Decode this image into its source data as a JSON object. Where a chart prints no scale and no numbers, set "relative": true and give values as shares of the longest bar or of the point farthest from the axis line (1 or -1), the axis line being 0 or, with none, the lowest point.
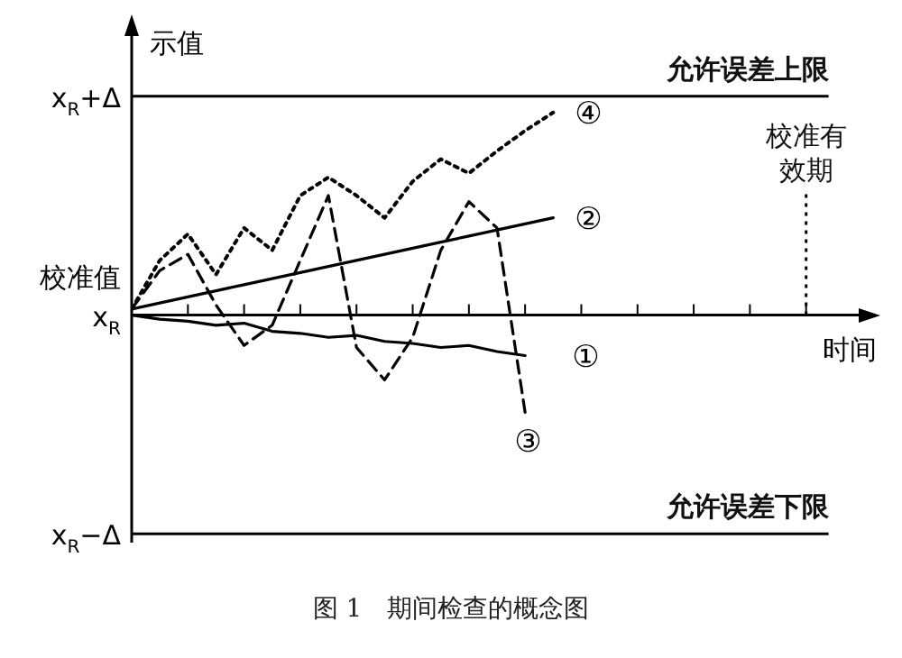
{
  "chart_data": {
    "type": "line",
    "ylabel": "示值",
    "xlabel": "时间",
    "relative": true,
    "categories": [
      null,
      null,
      null,
      null,
      null,
      null,
      null,
      null,
      null,
      null,
      null,
      null,
      null,
      null,
      null,
      null,
      null,
      null,
      null,
      null,
      null,
      null,
      null,
      null,
      null,
      null,
      null
    ],
    "legend": "right",
    "marker": "none",
    "series": [
      {
        "name": "①",
        "color": "#000000",
        "line_style": "solid",
        "values": [
          0,
          -0.02,
          -0.03,
          -0.05,
          -0.04,
          -0.08,
          -0.09,
          -0.11,
          -0.1,
          -0.13,
          -0.14,
          -0.16,
          -0.15,
          -0.18,
          -0.2,
          null,
          null,
          null,
          null,
          null,
          null,
          null,
          null,
          null,
          null,
          null,
          null
        ]
      },
      {
        "name": "②",
        "color": "#000000",
        "line_style": "solid",
        "values": [
          0.03,
          0.06,
          0.09,
          0.12,
          0.15,
          0.18,
          0.21,
          0.24,
          0.27,
          0.3,
          0.33,
          0.36,
          0.39,
          0.42,
          0.45,
          0.48,
          null,
          null,
          null,
          null,
          null,
          null,
          null,
          null,
          null,
          null,
          null
        ]
      },
      {
        "name": "③",
        "color": "#000000",
        "line_style": "dashed",
        "values": [
          0.03,
          0.22,
          0.3,
          0.05,
          -0.15,
          -0.05,
          0.27,
          0.59,
          -0.16,
          -0.32,
          -0.11,
          0.32,
          0.56,
          0.43,
          -0.48,
          null,
          null,
          null,
          null,
          null,
          null,
          null,
          null,
          null,
          null,
          null,
          null
        ]
      },
      {
        "name": "④",
        "color": "#000000",
        "line_style": "dotted",
        "values": [
          0.03,
          0.27,
          0.4,
          0.2,
          0.43,
          0.32,
          0.59,
          0.68,
          0.59,
          0.48,
          0.66,
          0.77,
          0.7,
          0.81,
          0.91,
          1,
          null,
          null,
          null,
          null,
          null,
          null,
          null,
          null,
          null,
          null,
          null
        ]
      }
    ],
    "ref_lines": [
      {
        "axis": "y",
        "value": 1.08,
        "label": "允许误差上限",
        "line_style": "solid"
      },
      {
        "axis": "y",
        "value": -1.08,
        "label": "允许误差下限",
        "line_style": "solid"
      }
    ],
    "annotations": [
      "x$_{R}$+Δ",
      "x$_{R}$",
      "校准值",
      "x$_{R}$−Δ",
      "校准有效期",
      "图 1　期间检查的概念图"
    ]
  }
}
